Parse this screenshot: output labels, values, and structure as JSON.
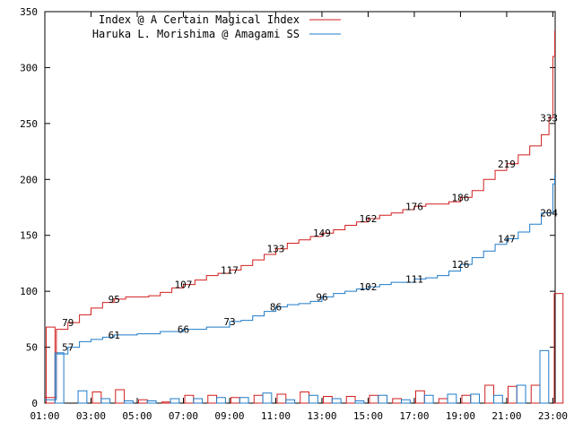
{
  "chart_data": {
    "type": "line",
    "title": "",
    "xlabel": "",
    "ylabel": "",
    "ylim": [
      0,
      350
    ],
    "xlim_hours": [
      1,
      23.1
    ],
    "y_ticks": [
      "0",
      "50",
      "100",
      "150",
      "200",
      "250",
      "300",
      "350"
    ],
    "x_ticks": [
      "01:00",
      "03:00",
      "05:00",
      "07:00",
      "09:00",
      "11:00",
      "13:00",
      "15:00",
      "17:00",
      "19:00",
      "21:00",
      "23:00"
    ],
    "colors": {
      "series1": "#d21f1f",
      "series2": "#1f7bc8"
    },
    "legend_position": "top-left",
    "series": [
      {
        "name": "Index @ A Certain Magical Index",
        "color": "#d21f1f",
        "cumulative": {
          "x": [
            "01:00",
            "01:30",
            "02:00",
            "02:30",
            "03:00",
            "03:30",
            "04:00",
            "04:30",
            "05:00",
            "05:30",
            "06:00",
            "06:30",
            "07:00",
            "07:30",
            "08:00",
            "08:30",
            "09:00",
            "09:30",
            "10:00",
            "10:30",
            "11:00",
            "11:30",
            "12:00",
            "12:30",
            "13:00",
            "13:30",
            "14:00",
            "14:30",
            "15:00",
            "15:30",
            "16:00",
            "16:30",
            "17:00",
            "17:30",
            "18:00",
            "18:30",
            "19:00",
            "19:30",
            "20:00",
            "20:30",
            "21:00",
            "21:30",
            "22:00",
            "22:30",
            "22:50",
            "23:00",
            "23:05"
          ],
          "y": [
            5,
            66,
            72,
            79,
            85,
            90,
            93,
            95,
            95,
            96,
            99,
            103,
            106,
            110,
            114,
            116,
            119,
            123,
            128,
            133,
            138,
            143,
            146,
            149,
            152,
            155,
            159,
            162,
            165,
            168,
            170,
            173,
            176,
            178,
            178,
            180,
            184,
            190,
            200,
            208,
            214,
            222,
            230,
            240,
            255,
            310,
            333
          ]
        },
        "labels": [
          {
            "x": "02:00",
            "text": "79"
          },
          {
            "x": "04:00",
            "text": "95"
          },
          {
            "x": "07:00",
            "text": "107"
          },
          {
            "x": "09:00",
            "text": "117"
          },
          {
            "x": "11:00",
            "text": "133"
          },
          {
            "x": "13:00",
            "text": "149"
          },
          {
            "x": "15:00",
            "text": "162"
          },
          {
            "x": "17:00",
            "text": "176"
          },
          {
            "x": "19:00",
            "text": "186"
          },
          {
            "x": "21:00",
            "text": "219"
          },
          {
            "x": "22:50",
            "text": "333"
          }
        ],
        "hourly_bars": [
          68,
          0,
          10,
          12,
          3,
          1,
          7,
          7,
          5,
          7,
          8,
          10,
          6,
          6,
          7,
          4,
          11,
          4,
          7,
          16,
          15,
          16,
          98
        ]
      },
      {
        "name": "Haruka L. Morishima @ Amagami SS",
        "color": "#1f7bc8",
        "cumulative": {
          "x": [
            "01:00",
            "01:30",
            "02:00",
            "02:30",
            "03:00",
            "03:30",
            "04:00",
            "05:00",
            "06:00",
            "07:00",
            "08:00",
            "09:00",
            "09:30",
            "10:00",
            "10:30",
            "11:00",
            "11:30",
            "12:00",
            "12:30",
            "13:00",
            "13:30",
            "14:00",
            "14:30",
            "15:00",
            "15:30",
            "16:00",
            "17:00",
            "17:30",
            "18:00",
            "18:30",
            "19:00",
            "19:30",
            "20:00",
            "20:30",
            "21:00",
            "21:30",
            "22:00",
            "22:30",
            "23:00",
            "23:05"
          ],
          "y": [
            3,
            44,
            50,
            55,
            57,
            59,
            61,
            62,
            64,
            66,
            68,
            73,
            74,
            78,
            82,
            86,
            88,
            89,
            91,
            95,
            98,
            100,
            102,
            104,
            106,
            108,
            111,
            112,
            114,
            118,
            124,
            130,
            136,
            142,
            147,
            153,
            160,
            170,
            196,
            204
          ]
        },
        "labels": [
          {
            "x": "02:00",
            "text": "57"
          },
          {
            "x": "04:00",
            "text": "61"
          },
          {
            "x": "07:00",
            "text": "66"
          },
          {
            "x": "09:00",
            "text": "73"
          },
          {
            "x": "11:00",
            "text": "86"
          },
          {
            "x": "13:00",
            "text": "96"
          },
          {
            "x": "15:00",
            "text": "102"
          },
          {
            "x": "17:00",
            "text": "111"
          },
          {
            "x": "19:00",
            "text": "126"
          },
          {
            "x": "21:00",
            "text": "147"
          },
          {
            "x": "22:50",
            "text": "204"
          }
        ],
        "hourly_bars": [
          45,
          11,
          4,
          2,
          2,
          4,
          4,
          5,
          5,
          9,
          3,
          7,
          4,
          2,
          7,
          3,
          7,
          8,
          8,
          7,
          16,
          47,
          0
        ]
      }
    ]
  }
}
